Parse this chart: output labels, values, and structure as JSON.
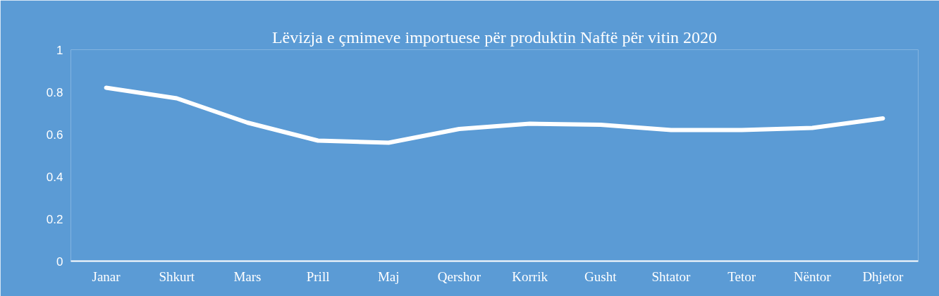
{
  "chart_data": {
    "type": "line",
    "title": "Lëvizja e çmimeve importuese për produktin Naftë për vitin 2020",
    "categories": [
      "Janar",
      "Shkurt",
      "Mars",
      "Prill",
      "Maj",
      "Qershor",
      "Korrik",
      "Gusht",
      "Shtator",
      "Tetor",
      "Nëntor",
      "Dhjetor"
    ],
    "series": [
      {
        "color": "#ffffff",
        "values": [
          0.82,
          0.77,
          0.655,
          0.57,
          0.56,
          0.625,
          0.65,
          0.645,
          0.62,
          0.62,
          0.63,
          0.675
        ]
      }
    ],
    "ylim": [
      0,
      1
    ],
    "yticks": [
      0,
      0.2,
      0.4,
      0.6,
      0.8,
      1
    ],
    "grid": false,
    "marker": "none",
    "line_style": "solid"
  }
}
